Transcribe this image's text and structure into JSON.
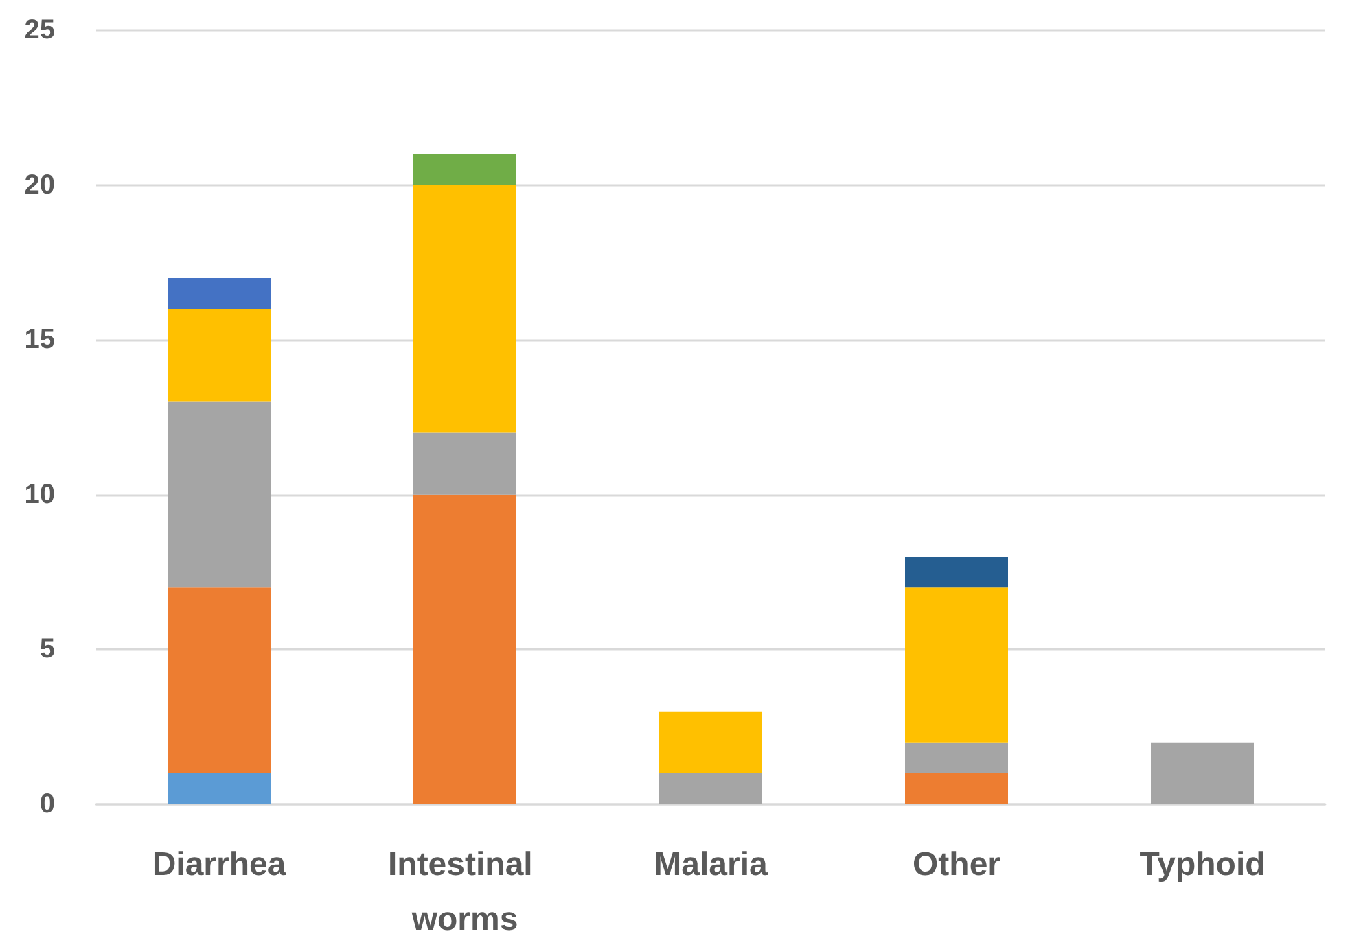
{
  "chart_data": {
    "type": "bar",
    "stacked": true,
    "categories": [
      "Diarrhea",
      "Intestinal worms",
      "Malaria",
      "Other",
      "Typhoid"
    ],
    "series": [
      {
        "color": "#5b9bd5",
        "values": [
          1,
          null,
          null,
          null,
          null
        ]
      },
      {
        "color": "#ed7d31",
        "values": [
          6,
          10,
          null,
          1,
          null
        ]
      },
      {
        "color": "#a5a5a5",
        "values": [
          6,
          2,
          1,
          1,
          2
        ]
      },
      {
        "color": "#ffc000",
        "values": [
          3,
          8,
          2,
          5,
          null
        ]
      },
      {
        "color": "#4472c4",
        "values": [
          1,
          null,
          null,
          null,
          null
        ]
      },
      {
        "color": "#70ad47",
        "values": [
          null,
          1,
          null,
          null,
          null
        ]
      },
      {
        "color": "#255e91",
        "values": [
          null,
          null,
          null,
          1,
          null
        ]
      }
    ],
    "ylim": [
      0,
      25
    ],
    "yticks": [
      0,
      5,
      10,
      15,
      20,
      25
    ],
    "grid": "y"
  }
}
